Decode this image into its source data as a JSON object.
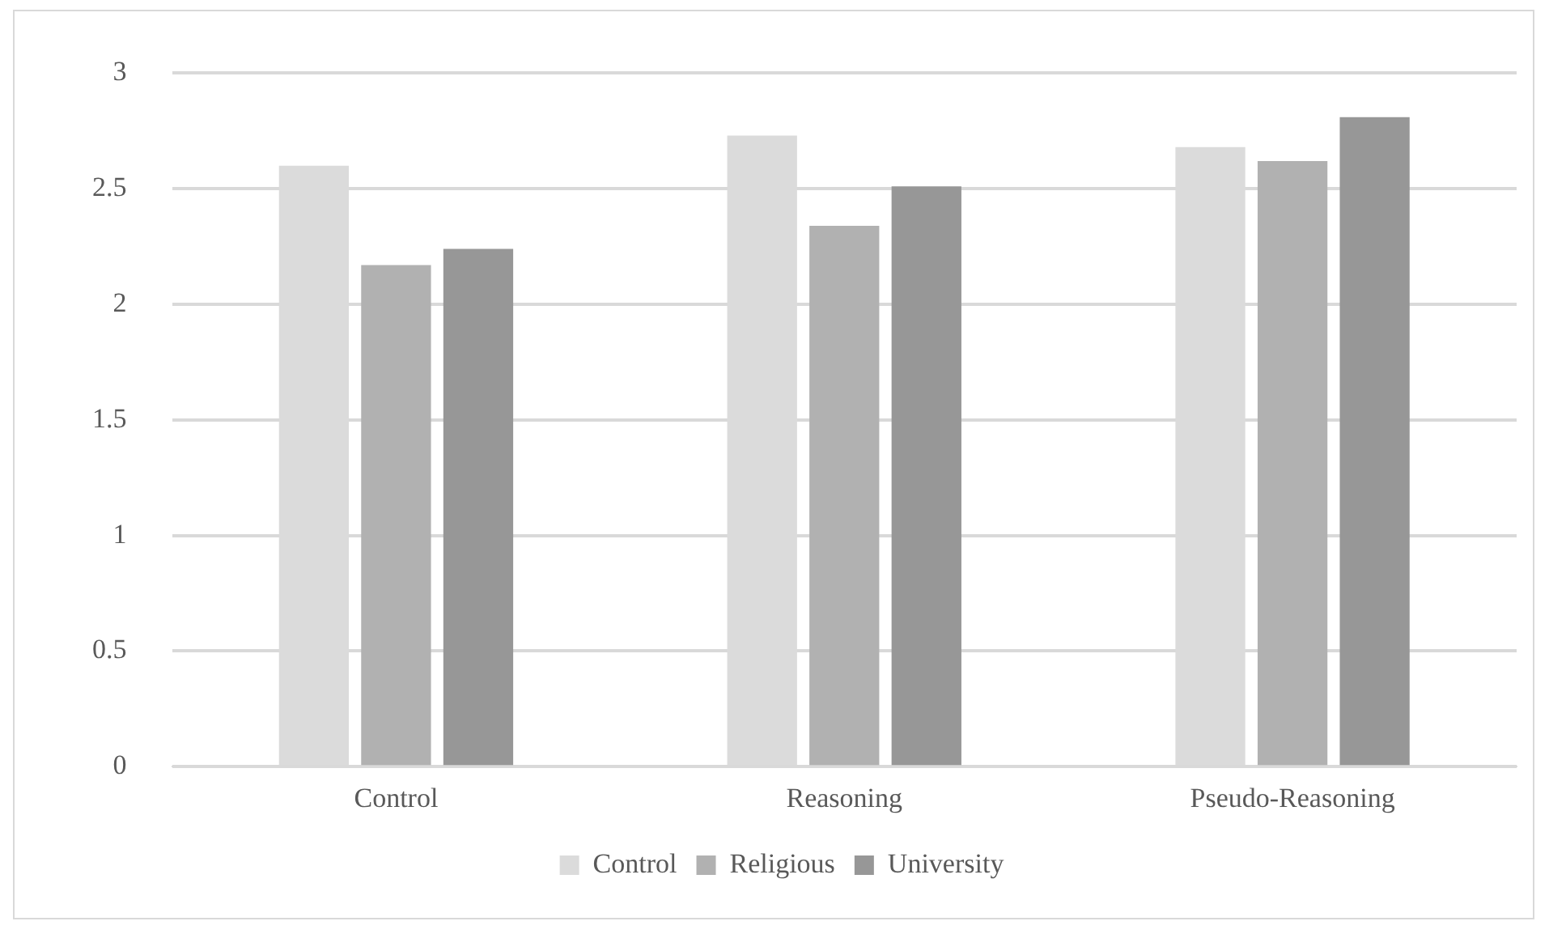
{
  "chart_data": {
    "type": "bar",
    "categories": [
      "Control",
      "Reasoning",
      "Pseudo-Reasoning"
    ],
    "series": [
      {
        "name": "Control",
        "color": "#dbdbdb",
        "values": [
          2.6,
          2.73,
          2.68
        ]
      },
      {
        "name": "Religious",
        "color": "#b1b1b1",
        "values": [
          2.17,
          2.34,
          2.62
        ]
      },
      {
        "name": "University",
        "color": "#979797",
        "values": [
          2.24,
          2.51,
          2.81
        ]
      }
    ],
    "ylim": [
      0,
      3
    ],
    "yticks": [
      0,
      0.5,
      1,
      1.5,
      2,
      2.5,
      3
    ],
    "grid": "y",
    "legend": "bottom"
  }
}
